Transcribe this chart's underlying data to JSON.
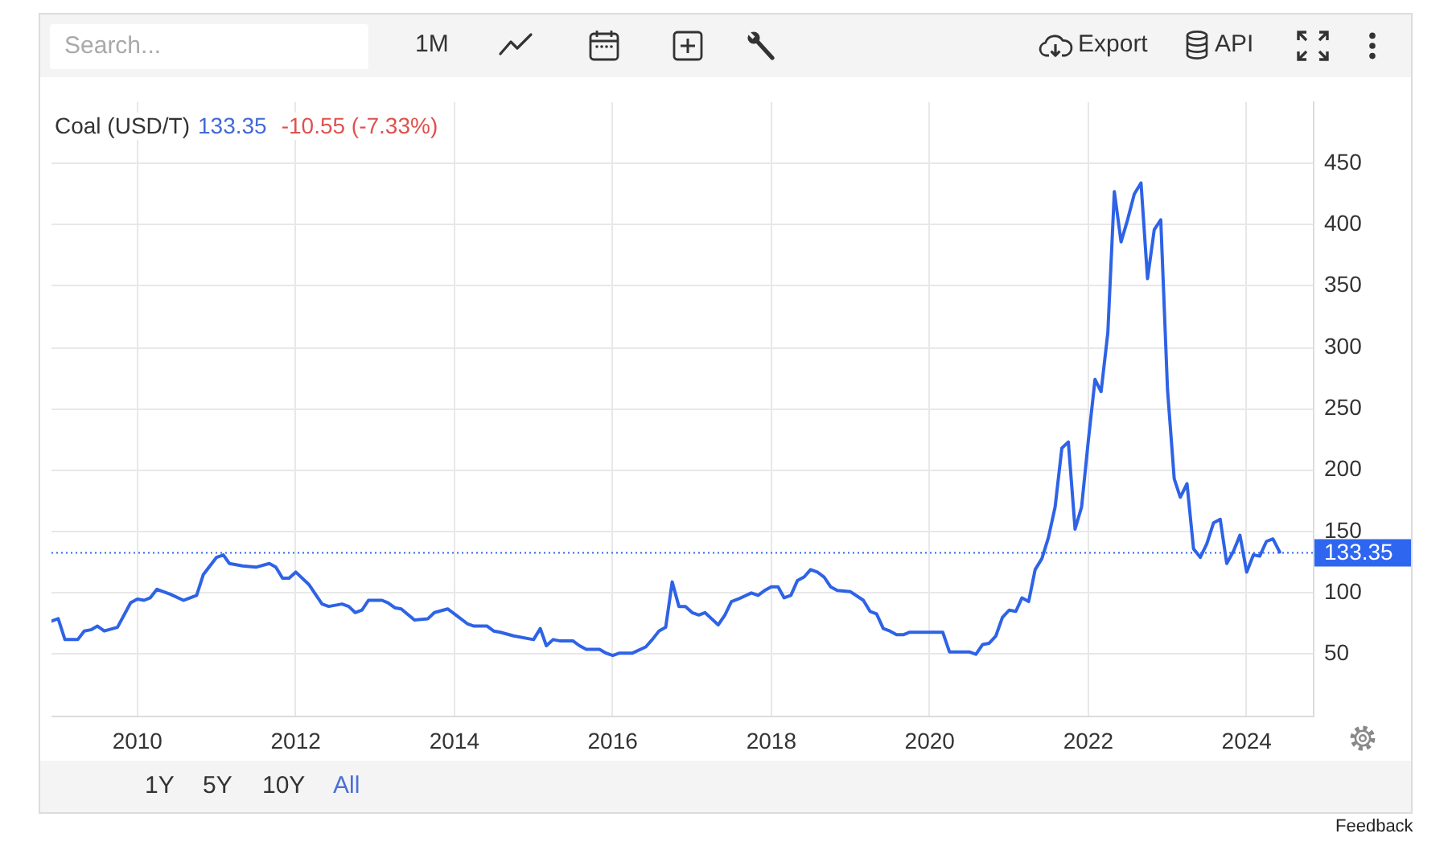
{
  "chart_data": {
    "type": "line",
    "title": "Coal (USD/T)",
    "annotations": [
      "133.35",
      "-10.55 (-7.33%)",
      "Search...",
      "1M",
      "Export",
      "API",
      "1Y",
      "5Y",
      "10Y",
      "All",
      "Feedback"
    ],
    "x": [
      "2008-12",
      "2009-01",
      "2009-02",
      "2009-04",
      "2009-05",
      "2009-06",
      "2009-07",
      "2009-08",
      "2009-10",
      "2009-12",
      "2010-01",
      "2010-02",
      "2010-03",
      "2010-04",
      "2010-06",
      "2010-08",
      "2010-10",
      "2010-11",
      "2011-01",
      "2011-02",
      "2011-03",
      "2011-05",
      "2011-07",
      "2011-09",
      "2011-10",
      "2011-11",
      "2011-12",
      "2012-01",
      "2012-03",
      "2012-05",
      "2012-06",
      "2012-08",
      "2012-09",
      "2012-10",
      "2012-11",
      "2012-12",
      "2013-02",
      "2013-03",
      "2013-04",
      "2013-05",
      "2013-07",
      "2013-09",
      "2013-10",
      "2013-12",
      "2014-01",
      "2014-03",
      "2014-04",
      "2014-06",
      "2014-07",
      "2014-08",
      "2014-10",
      "2015-01",
      "2015-02",
      "2015-03",
      "2015-04",
      "2015-05",
      "2015-07",
      "2015-08",
      "2015-09",
      "2015-11",
      "2015-12",
      "2016-01",
      "2016-02",
      "2016-04",
      "2016-06",
      "2016-07",
      "2016-08",
      "2016-09",
      "2016-10",
      "2016-11",
      "2016-12",
      "2017-01",
      "2017-02",
      "2017-03",
      "2017-05",
      "2017-06",
      "2017-07",
      "2017-08",
      "2017-10",
      "2017-11",
      "2017-12",
      "2018-01",
      "2018-02",
      "2018-03",
      "2018-04",
      "2018-05",
      "2018-06",
      "2018-07",
      "2018-08",
      "2018-09",
      "2018-10",
      "2018-11",
      "2019-01",
      "2019-03",
      "2019-04",
      "2019-05",
      "2019-06",
      "2019-07",
      "2019-08",
      "2019-09",
      "2019-10",
      "2019-12",
      "2020-02",
      "2020-03",
      "2020-04",
      "2020-05",
      "2020-07",
      "2020-08",
      "2020-09",
      "2020-10",
      "2020-11",
      "2020-12",
      "2021-01",
      "2021-02",
      "2021-03",
      "2021-04",
      "2021-05",
      "2021-06",
      "2021-07",
      "2021-08",
      "2021-09",
      "2021-10",
      "2021-11",
      "2021-12",
      "2022-01",
      "2022-02",
      "2022-03",
      "2022-04",
      "2022-05",
      "2022-06",
      "2022-07",
      "2022-08",
      "2022-09",
      "2022-10",
      "2022-11",
      "2022-12",
      "2023-01",
      "2023-02",
      "2023-03",
      "2023-04",
      "2023-05",
      "2023-06",
      "2023-07",
      "2023-08",
      "2023-09",
      "2023-10",
      "2023-11",
      "2023-12",
      "2024-01",
      "2024-02",
      "2024-03",
      "2024-04",
      "2024-05",
      "2024-06"
    ],
    "values": [
      77,
      79,
      62,
      62,
      69,
      70,
      73,
      69,
      72,
      92,
      95,
      94,
      96,
      103,
      99,
      94,
      98,
      115,
      129,
      131,
      124,
      122,
      121,
      124,
      121,
      112,
      112,
      117,
      107,
      91,
      89,
      91,
      89,
      84,
      86,
      94,
      94,
      92,
      88,
      87,
      78,
      79,
      84,
      87,
      83,
      75,
      73,
      73,
      69,
      68,
      65,
      62,
      71,
      57,
      62,
      61,
      61,
      57,
      54,
      54,
      51,
      49,
      51,
      51,
      56,
      62,
      69,
      72,
      109,
      89,
      89,
      84,
      82,
      84,
      74,
      82,
      93,
      95,
      100,
      98,
      102,
      105,
      105,
      96,
      98,
      110,
      113,
      119,
      117,
      113,
      105,
      102,
      101,
      94,
      85,
      83,
      71,
      69,
      66,
      66,
      68,
      68,
      68,
      68,
      52,
      52,
      52,
      50,
      58,
      59,
      65,
      80,
      86,
      85,
      96,
      93,
      119,
      128,
      145,
      170,
      218,
      223,
      152,
      170,
      224,
      274,
      264,
      312,
      427,
      386,
      404,
      425,
      434,
      356,
      396,
      404,
      266,
      193,
      178,
      189,
      136,
      129,
      140,
      157,
      160,
      124,
      134,
      147,
      117,
      131,
      130,
      142,
      144,
      133.35
    ],
    "color": "#2e63e6",
    "xlim": [
      "2008-12",
      "2024-11"
    ],
    "xticks": [
      "2010",
      "2012",
      "2014",
      "2016",
      "2018",
      "2020",
      "2022",
      "2024"
    ],
    "ylim": [
      0,
      500
    ],
    "yticks": [
      50,
      100,
      150,
      200,
      250,
      300,
      350,
      400,
      450
    ],
    "grid": true,
    "ref_lines": [
      {
        "axis": "y",
        "value": 133.35,
        "label": "133.35",
        "color": "#2f66f0",
        "line_style": "dotted"
      }
    ]
  }
}
